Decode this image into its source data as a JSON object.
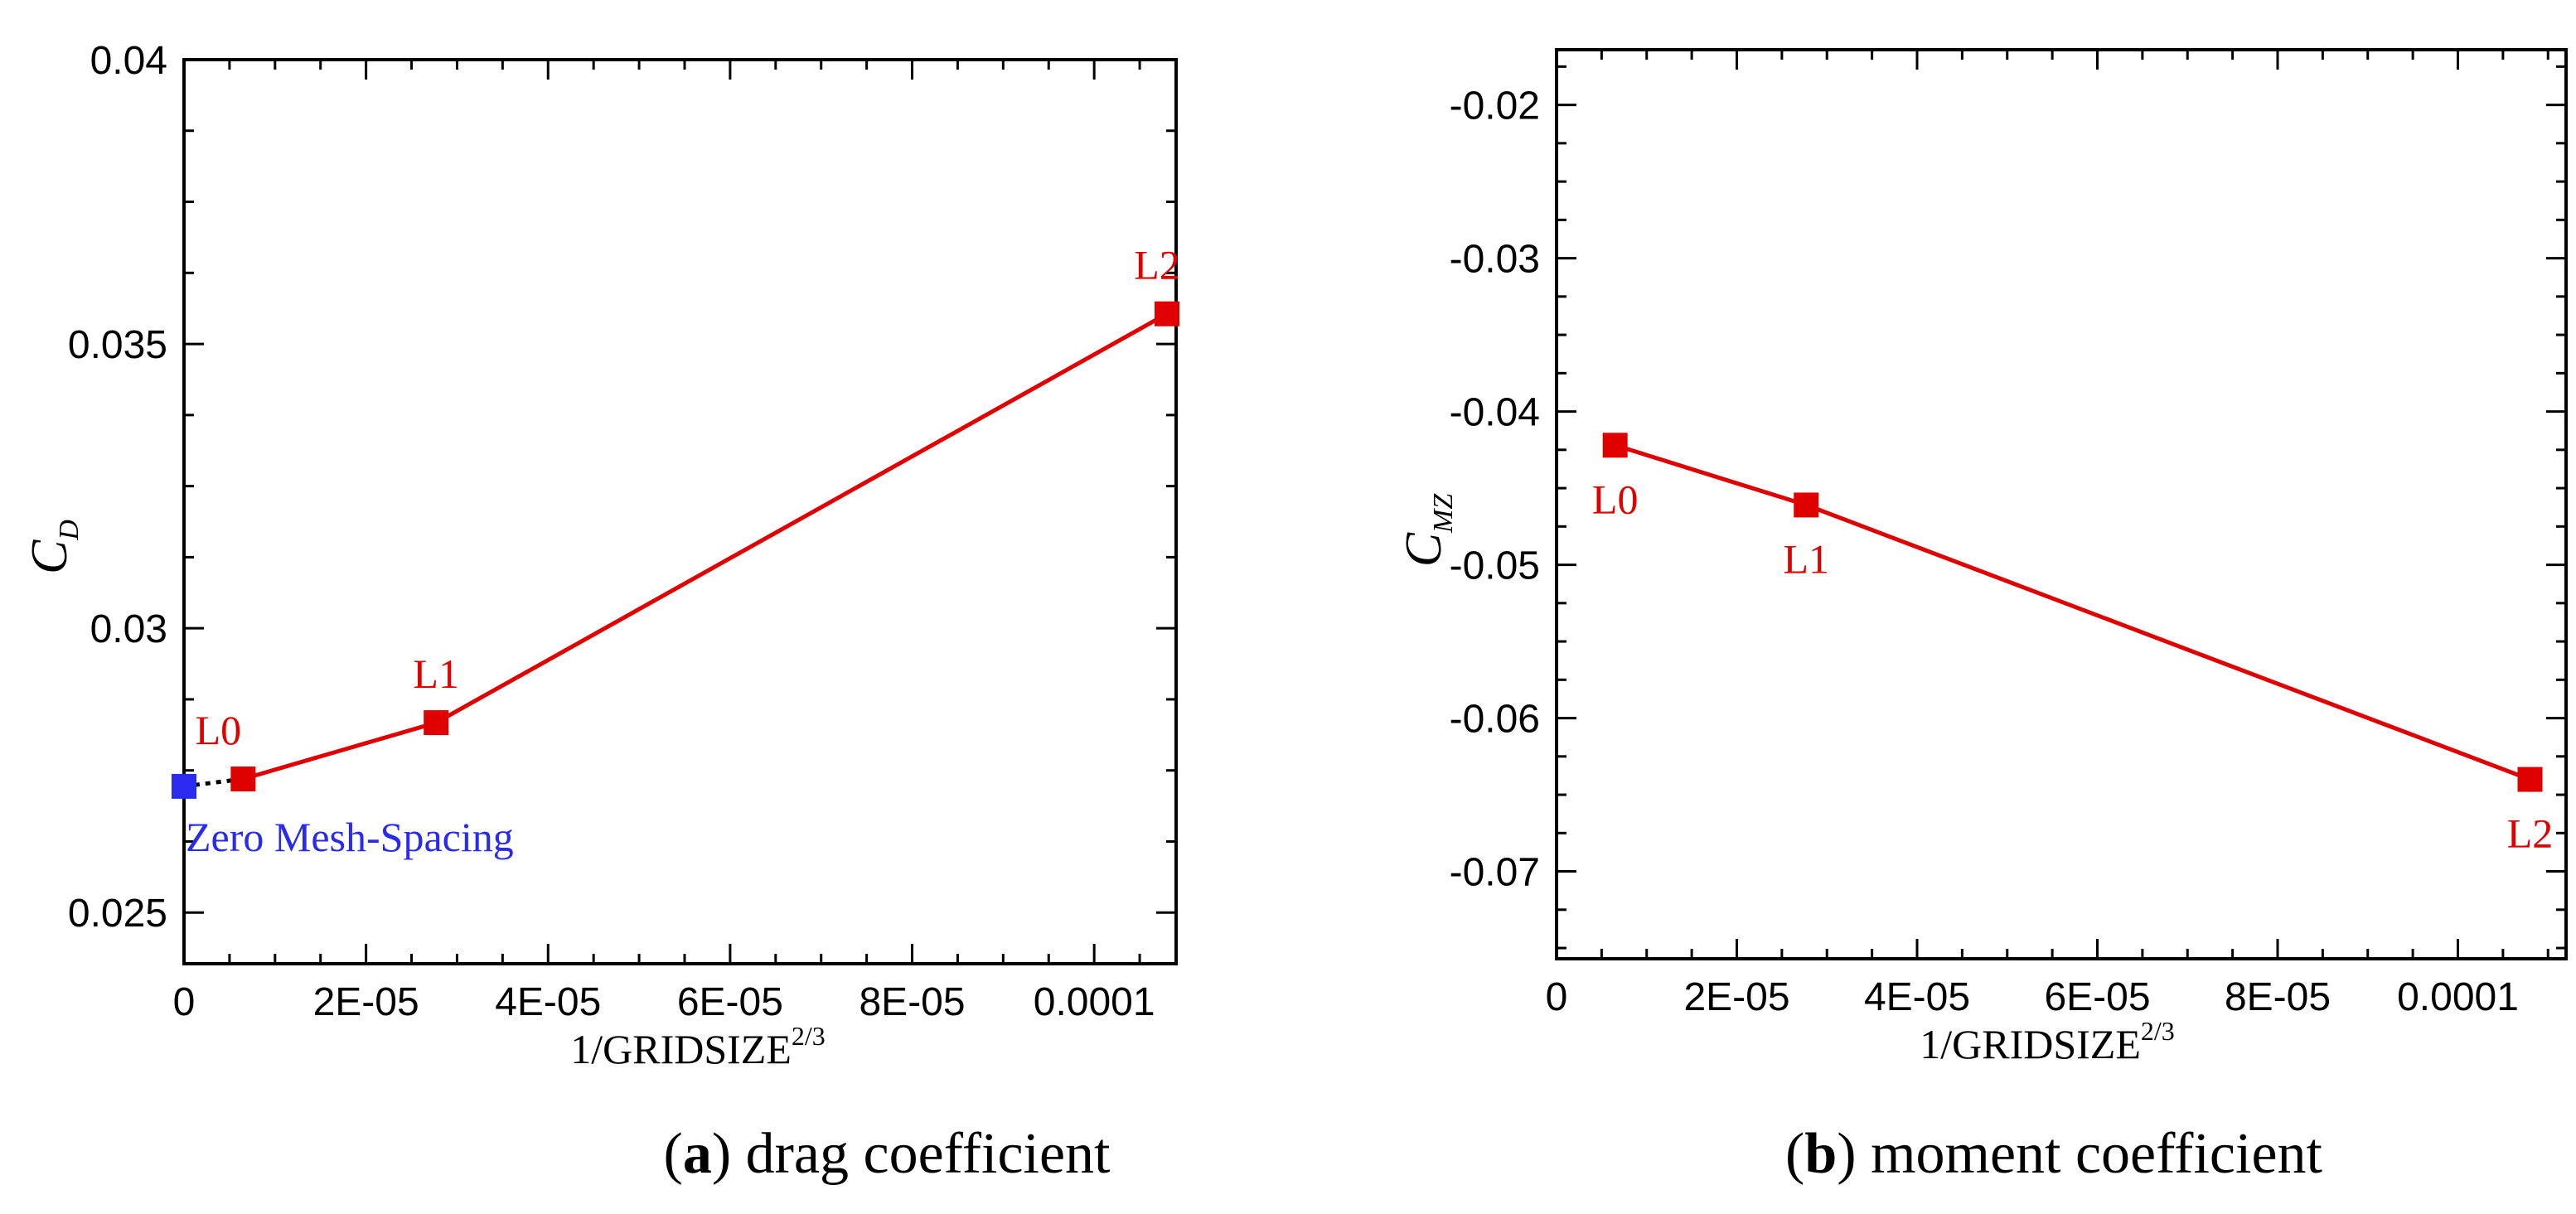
{
  "colors": {
    "series": "#e00000",
    "extrapolated": "#2b2bf0",
    "axis": "#000000"
  },
  "chart_data": [
    {
      "type": "line",
      "caption_letter": "a",
      "caption_text": "drag coefficient",
      "xlabel_main": "1/GRIDSIZE",
      "xlabel_sup": "2/3",
      "ylabel_main": "C",
      "ylabel_sub": "D",
      "xlim": [
        0,
        0.000109
      ],
      "ylim": [
        0.0241,
        0.04
      ],
      "x_ticks": [
        0,
        2e-05,
        4e-05,
        6e-05,
        8e-05,
        0.0001
      ],
      "x_tick_labels": [
        "0",
        "2E-05",
        "4E-05",
        "6E-05",
        "8E-05",
        "0.0001"
      ],
      "y_ticks": [
        0.025,
        0.03,
        0.035,
        0.04
      ],
      "y_tick_labels": [
        "0.025",
        "0.03",
        "0.035",
        "0.04"
      ],
      "series": [
        {
          "points": [
            {
              "label": "L0",
              "x": 6.5e-06,
              "y": 0.02735
            },
            {
              "label": "L1",
              "x": 2.77e-05,
              "y": 0.02834
            },
            {
              "label": "L2",
              "x": 0.000108,
              "y": 0.03553
            }
          ]
        }
      ],
      "extrapolated": {
        "label": "Zero Mesh-Spacing",
        "x": 0,
        "y": 0.02722
      }
    },
    {
      "type": "line",
      "caption_letter": "b",
      "caption_text": "moment coefficient",
      "xlabel_main": "1/GRIDSIZE",
      "xlabel_sup": "2/3",
      "ylabel_main": "C",
      "ylabel_sub": "MZ",
      "xlim": [
        0,
        0.000112
      ],
      "ylim": [
        -0.0757,
        -0.0164
      ],
      "x_ticks": [
        0,
        2e-05,
        4e-05,
        6e-05,
        8e-05,
        0.0001
      ],
      "x_tick_labels": [
        "0",
        "2E-05",
        "4E-05",
        "6E-05",
        "8E-05",
        "0.0001"
      ],
      "y_ticks": [
        -0.02,
        -0.03,
        -0.04,
        -0.05,
        -0.06,
        -0.07
      ],
      "y_tick_labels": [
        "-0.02",
        "-0.03",
        "-0.04",
        "-0.05",
        "-0.06",
        "-0.07"
      ],
      "series": [
        {
          "points": [
            {
              "label": "L0",
              "x": 6.5e-06,
              "y": -0.0422
            },
            {
              "label": "L1",
              "x": 2.77e-05,
              "y": -0.0461
            },
            {
              "label": "L2",
              "x": 0.000108,
              "y": -0.064
            }
          ]
        }
      ]
    }
  ]
}
